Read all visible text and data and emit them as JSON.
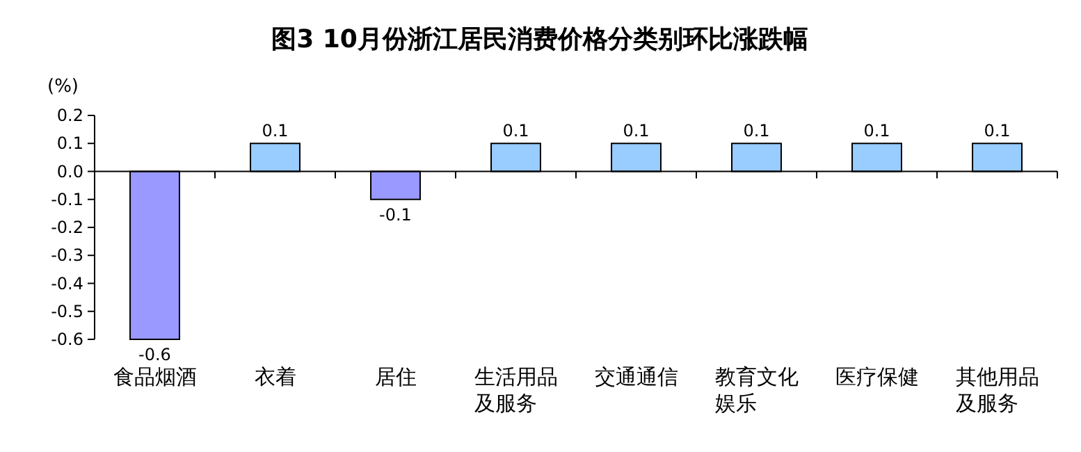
{
  "chart_data": {
    "type": "bar",
    "title": "图3 10月份浙江居民消费价格分类别环比涨跌幅",
    "ylabel": "(%)",
    "categories": [
      "食品烟酒",
      "衣着",
      "居住",
      "生活用品及服务",
      "交通通信",
      "教育文化娱乐",
      "医疗保健",
      "其他用品及服务"
    ],
    "values": [
      -0.6,
      0.1,
      -0.1,
      0.1,
      0.1,
      0.1,
      0.1,
      0.1
    ],
    "colors": [
      "#9999ff",
      "#99ccff",
      "#9999ff",
      "#99ccff",
      "#99ccff",
      "#99ccff",
      "#99ccff",
      "#99ccff"
    ],
    "ylim": [
      -0.6,
      0.2
    ],
    "yticks": [
      0.2,
      0.1,
      {
        "value": 0,
        "label": "0.0"
      },
      -0.1,
      -0.2,
      -0.3,
      -0.4,
      -0.5,
      -0.6
    ],
    "data_labels": true
  }
}
